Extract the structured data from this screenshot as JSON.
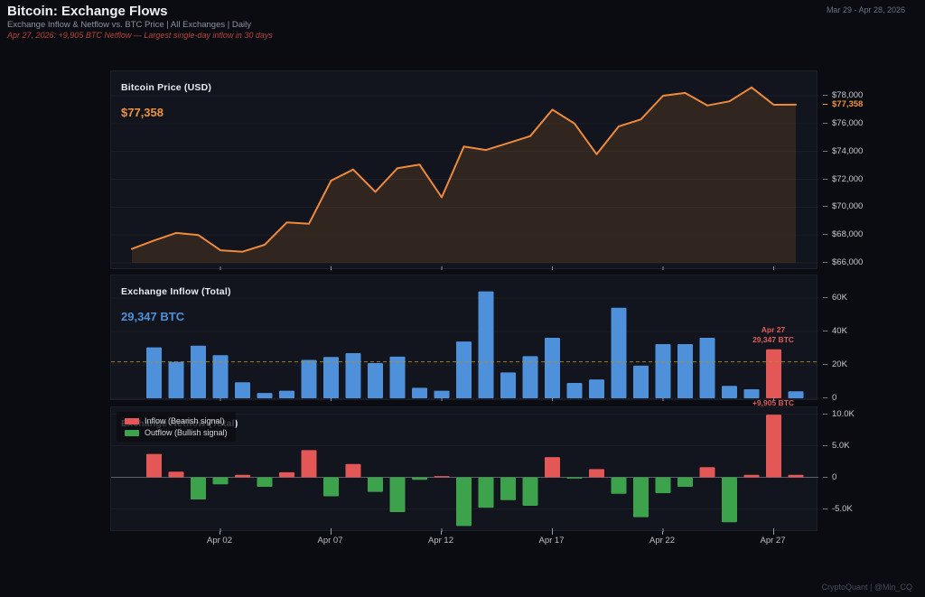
{
  "header": {
    "title": "Bitcoin: Exchange Flows",
    "subtitle": "Exchange Inflow & Netflow vs. BTC Price  |  All Exchanges  |  Daily",
    "annotation": "Apr 27, 2026: +9,905 BTC Netflow — Largest single-day inflow in 30 days",
    "date_range": "Mar 29 - Apr 28, 2026"
  },
  "panels": {
    "price": {
      "title": "Bitcoin Price (USD)",
      "current_value": "$77,358"
    },
    "inflow": {
      "title": "Exchange Inflow (Total)",
      "current_value": "29,347 BTC",
      "annotation_line1": "Apr 27",
      "annotation_line2": "29,347 BTC"
    },
    "netflow": {
      "title": "Exchange Netflow (Total)",
      "annotation": "+9,905 BTC",
      "legend": [
        {
          "label": "Inflow (Bearish signal)",
          "color": "#e45757"
        },
        {
          "label": "Outflow (Bullish signal)",
          "color": "#3da24c"
        }
      ]
    }
  },
  "x_axis": {
    "labels": [
      "Apr 02",
      "Apr 07",
      "Apr 12",
      "Apr 17",
      "Apr 22",
      "Apr 27"
    ],
    "indices": [
      4,
      9,
      14,
      19,
      24,
      29
    ]
  },
  "footer": {
    "credit": "CryptoQuant | @Min_CQ"
  },
  "colors": {
    "background": "#0a0c11",
    "panel": "#12151d",
    "price_line": "#ee8a3c",
    "price_fill": "rgba(238,138,60,0.14)",
    "inflow_bar": "#4e90d9",
    "highlight_red": "#e45757",
    "outflow_green": "#3da24c",
    "avg_dashed": "#b08a2d",
    "accent_orange": "#ef9240",
    "accent_blue": "#4e90d9",
    "annotation_red": "#e25c5c"
  },
  "chart_data": [
    {
      "type": "line",
      "title": "Bitcoin Price (USD)",
      "x": [
        "Mar 29",
        "Mar 30",
        "Mar 31",
        "Apr 01",
        "Apr 02",
        "Apr 03",
        "Apr 04",
        "Apr 05",
        "Apr 06",
        "Apr 07",
        "Apr 08",
        "Apr 09",
        "Apr 10",
        "Apr 11",
        "Apr 12",
        "Apr 13",
        "Apr 14",
        "Apr 15",
        "Apr 16",
        "Apr 17",
        "Apr 18",
        "Apr 19",
        "Apr 20",
        "Apr 21",
        "Apr 22",
        "Apr 23",
        "Apr 24",
        "Apr 25",
        "Apr 26",
        "Apr 27",
        "Apr 28"
      ],
      "values": [
        67000,
        67600,
        68150,
        68000,
        66900,
        66800,
        67300,
        68900,
        68800,
        71900,
        72700,
        71100,
        72800,
        73050,
        70700,
        74350,
        74100,
        74600,
        75100,
        77000,
        76000,
        73800,
        75800,
        76300,
        78000,
        78200,
        77300,
        77600,
        78600,
        77350,
        77358
      ],
      "ylim": [
        66000,
        78800
      ],
      "y_ticks": {
        "values": [
          78000,
          76000,
          74000,
          72000,
          70000,
          68000,
          66000
        ],
        "labels": [
          "$78,000",
          "$76,000",
          "$74,000",
          "$72,000",
          "$70,000",
          "$68,000",
          "$66,000"
        ]
      },
      "current": {
        "value": 77358,
        "label": "$77,358"
      },
      "legend_position": "none",
      "grid": "faint-horizontal"
    },
    {
      "type": "bar",
      "title": "Exchange Inflow (Total)",
      "unit": "BTC",
      "x": [
        "Mar 29",
        "Mar 30",
        "Mar 31",
        "Apr 01",
        "Apr 02",
        "Apr 03",
        "Apr 04",
        "Apr 05",
        "Apr 06",
        "Apr 07",
        "Apr 08",
        "Apr 09",
        "Apr 10",
        "Apr 11",
        "Apr 12",
        "Apr 13",
        "Apr 14",
        "Apr 15",
        "Apr 16",
        "Apr 17",
        "Apr 18",
        "Apr 19",
        "Apr 20",
        "Apr 21",
        "Apr 22",
        "Apr 23",
        "Apr 24",
        "Apr 25",
        "Apr 26",
        "Apr 27",
        "Apr 28"
      ],
      "values": [
        0,
        30500,
        21800,
        31500,
        25800,
        9600,
        3200,
        4500,
        23000,
        24700,
        27000,
        21100,
        24900,
        6300,
        4500,
        34000,
        64000,
        15500,
        25200,
        36200,
        9200,
        11300,
        54200,
        19500,
        32400,
        32400,
        36200,
        7400,
        5400,
        29347,
        4200
      ],
      "ylim": [
        0,
        75000
      ],
      "y_ticks": {
        "values": [
          60000,
          40000,
          20000,
          0
        ],
        "labels": [
          "60K",
          "40K",
          "20K",
          "0"
        ]
      },
      "highlight": {
        "index": 29,
        "date": "Apr 27",
        "value": 29347
      },
      "avg_line": {
        "value": 21800,
        "style": "dashed"
      }
    },
    {
      "type": "bar",
      "title": "Exchange Netflow (Total)",
      "unit": "BTC",
      "x": [
        "Mar 29",
        "Mar 30",
        "Mar 31",
        "Apr 01",
        "Apr 02",
        "Apr 03",
        "Apr 04",
        "Apr 05",
        "Apr 06",
        "Apr 07",
        "Apr 08",
        "Apr 09",
        "Apr 10",
        "Apr 11",
        "Apr 12",
        "Apr 13",
        "Apr 14",
        "Apr 15",
        "Apr 16",
        "Apr 17",
        "Apr 18",
        "Apr 19",
        "Apr 20",
        "Apr 21",
        "Apr 22",
        "Apr 23",
        "Apr 24",
        "Apr 25",
        "Apr 26",
        "Apr 27",
        "Apr 28"
      ],
      "values": [
        0,
        3700,
        900,
        -3500,
        -1100,
        400,
        -1500,
        800,
        4300,
        -3000,
        2100,
        -2300,
        -5500,
        -400,
        200,
        -7700,
        -4800,
        -3600,
        -4500,
        3200,
        -200,
        1300,
        -2600,
        -6300,
        -2500,
        -1500,
        1600,
        -7100,
        400,
        9905,
        400
      ],
      "ylim": [
        -8500,
        11000
      ],
      "y_ticks": {
        "values": [
          10000,
          5000,
          0,
          -5000
        ],
        "labels": [
          "10.0K",
          "5.0K",
          "0",
          "-5.0K"
        ]
      },
      "annotation": {
        "index": 29,
        "value": 9905
      }
    }
  ]
}
